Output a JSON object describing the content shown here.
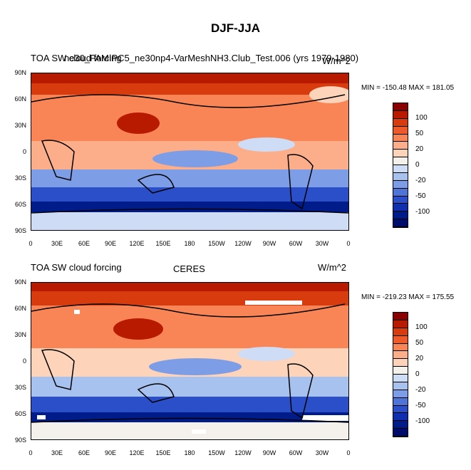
{
  "figure_title": "DJF-JJA",
  "panels": [
    {
      "left_title": "TOA SW cloud forcing",
      "center_title": "ne30_FAMIPC5_ne30np4-VarMeshNH3.Club_Test.006 (yrs 1979-1980)",
      "right_title": "W/m^2",
      "minmax": "MIN = -150.48 MAX = 181.05"
    },
    {
      "left_title": "TOA SW cloud forcing",
      "center_title": "CERES",
      "right_title": "W/m^2",
      "minmax": "MIN = -219.23 MAX = 175.55"
    }
  ],
  "y_ticks": [
    "90N",
    "60N",
    "30N",
    "0",
    "30S",
    "60S",
    "90S"
  ],
  "x_ticks": [
    "0",
    "30E",
    "60E",
    "90E",
    "120E",
    "150E",
    "180",
    "150W",
    "120W",
    "90W",
    "60W",
    "30W",
    "0"
  ],
  "colorbar": {
    "labels": [
      "100",
      "50",
      "20",
      "0",
      "-20",
      "-50",
      "-100"
    ],
    "colors": [
      "#8b0000",
      "#b81a00",
      "#d83b0e",
      "#ee5a2a",
      "#f98455",
      "#fcae8a",
      "#fdd3b9",
      "#f4f0ec",
      "#cfdcf5",
      "#a8c2ef",
      "#7d9de6",
      "#4e74d8",
      "#2a4fc8",
      "#0f2fae",
      "#001b8a",
      "#000d6b"
    ]
  }
}
